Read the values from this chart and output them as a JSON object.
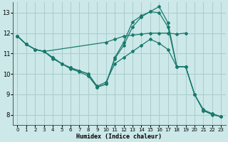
{
  "background_color": "#cce8e8",
  "grid_color": "#aacccc",
  "line_color": "#1a7a6e",
  "xlabel": "Humidex (Indice chaleur)",
  "xlim": [
    -0.5,
    23.5
  ],
  "ylim": [
    7.5,
    13.5
  ],
  "yticks": [
    8,
    9,
    10,
    11,
    12,
    13
  ],
  "xticks": [
    0,
    1,
    2,
    3,
    4,
    5,
    6,
    7,
    8,
    9,
    10,
    11,
    12,
    13,
    14,
    15,
    16,
    17,
    18,
    19,
    20,
    21,
    22,
    23
  ],
  "lines": [
    {
      "x": [
        0,
        1,
        2,
        3,
        10,
        11,
        12,
        13,
        14,
        15,
        16,
        17,
        18,
        19
      ],
      "y": [
        11.85,
        11.45,
        11.2,
        11.1,
        11.55,
        11.7,
        11.85,
        11.9,
        11.95,
        12.0,
        12.0,
        12.0,
        11.95,
        12.0
      ]
    },
    {
      "x": [
        0,
        1,
        2,
        3,
        4,
        5,
        6,
        7,
        8,
        9,
        10,
        11,
        12,
        13,
        14,
        15,
        16,
        17,
        18,
        19,
        20,
        21,
        22,
        23
      ],
      "y": [
        11.85,
        11.45,
        11.2,
        11.1,
        10.75,
        10.5,
        10.25,
        10.1,
        9.9,
        9.35,
        9.5,
        10.8,
        11.55,
        12.55,
        12.85,
        13.05,
        13.3,
        12.5,
        10.35,
        10.35,
        9.0,
        8.2,
        8.0,
        7.9
      ]
    },
    {
      "x": [
        0,
        1,
        2,
        3,
        4,
        5,
        6,
        7,
        8,
        9,
        10,
        11,
        12,
        13,
        14,
        15,
        16,
        17,
        18,
        19,
        20,
        21,
        22,
        23
      ],
      "y": [
        11.85,
        11.45,
        11.2,
        11.1,
        10.8,
        10.5,
        10.3,
        10.15,
        10.0,
        9.35,
        9.5,
        10.75,
        11.4,
        12.3,
        12.8,
        13.05,
        13.0,
        12.3,
        10.35,
        10.35,
        9.0,
        8.2,
        8.05,
        7.9
      ]
    },
    {
      "x": [
        0,
        1,
        2,
        3,
        4,
        5,
        6,
        7,
        8,
        9,
        10,
        11,
        12,
        13,
        14,
        15,
        16,
        17,
        18,
        19,
        20,
        21,
        22,
        23
      ],
      "y": [
        11.85,
        11.45,
        11.2,
        11.1,
        10.8,
        10.5,
        10.3,
        10.15,
        10.0,
        9.4,
        9.6,
        10.5,
        10.8,
        11.1,
        11.4,
        11.7,
        11.5,
        11.2,
        10.35,
        10.35,
        9.0,
        8.25,
        8.05,
        7.9
      ]
    }
  ]
}
